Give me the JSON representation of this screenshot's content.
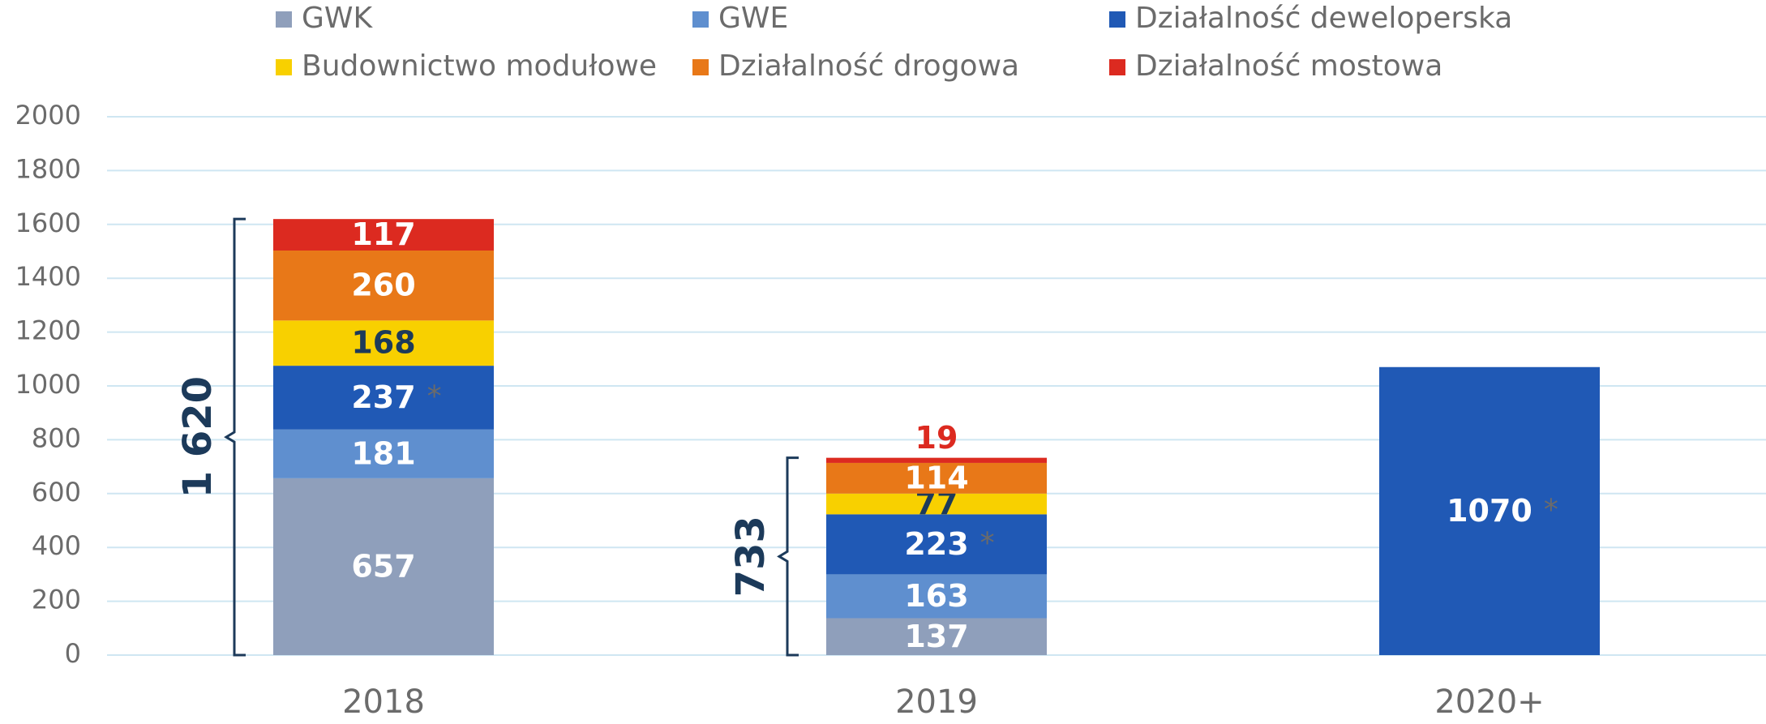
{
  "chart_data": {
    "type": "stacked_bar",
    "categories": [
      "2018",
      "2019",
      "2020+"
    ],
    "series": [
      {
        "name": "GWK",
        "color": "#8f9fbb",
        "label_color": "#ffffff",
        "values": [
          657,
          137,
          null
        ]
      },
      {
        "name": "GWE",
        "color": "#5f8fcf",
        "label_color": "#ffffff",
        "values": [
          181,
          163,
          null
        ]
      },
      {
        "name": "Działalność deweloperska",
        "color": "#2059b5",
        "label_color": "#ffffff",
        "values": [
          237,
          223,
          1070
        ]
      },
      {
        "name": "Budownictwo modułowe",
        "color": "#f8d000",
        "label_color": "#1c3a5a",
        "values": [
          168,
          77,
          null
        ]
      },
      {
        "name": "Działalność drogowa",
        "color": "#e87818",
        "label_color": "#ffffff",
        "values": [
          260,
          114,
          null
        ]
      },
      {
        "name": "Działalność mostowa",
        "color": "#dc2a20",
        "label_color": "#ffffff",
        "values": [
          117,
          19,
          null
        ]
      }
    ],
    "note_marker": "*",
    "note_series": 2,
    "totals": [
      {
        "value": 1620,
        "label": "1 620"
      },
      733,
      null
    ],
    "ylim": [
      0,
      2000
    ],
    "yticks": [
      0,
      200,
      400,
      600,
      800,
      1000,
      1200,
      1400,
      1600,
      1800,
      2000
    ],
    "grid": true
  }
}
